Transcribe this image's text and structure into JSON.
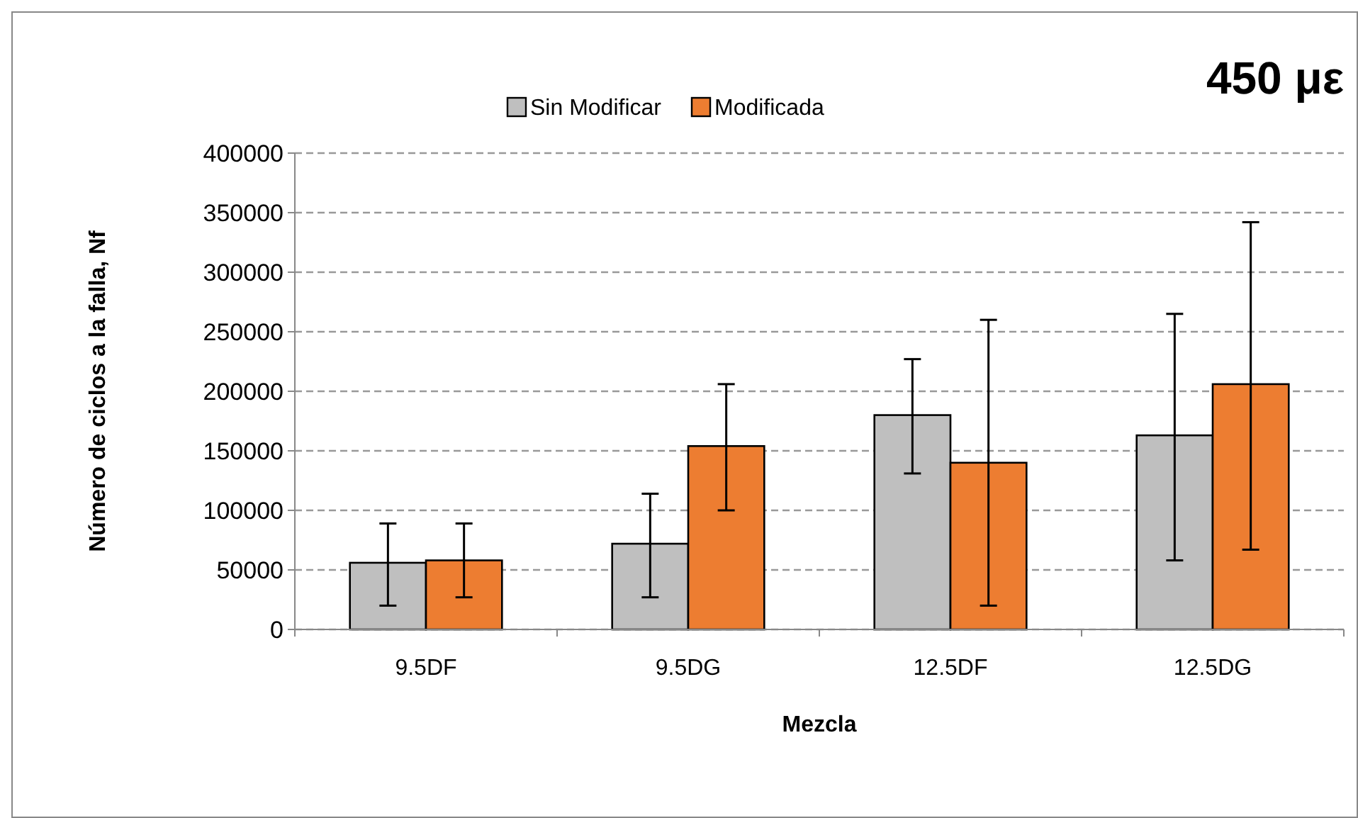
{
  "chart_data": {
    "type": "bar",
    "xlabel": "Mezcla",
    "ylabel": "Número de ciclos a la falla, Nf",
    "annotations": [
      "450 με"
    ],
    "categories": [
      "9.5DF",
      "9.5DG",
      "12.5DF",
      "12.5DG"
    ],
    "series": [
      {
        "name": "Sin Modificar",
        "color": "#bfbfbf",
        "values": [
          56000,
          72000,
          180000,
          163000
        ],
        "errors": [
          [
            20000,
            89000
          ],
          [
            27000,
            114000
          ],
          [
            131000,
            227000
          ],
          [
            58000,
            265000
          ]
        ]
      },
      {
        "name": "Modificada",
        "color": "#ed7d31",
        "values": [
          58000,
          154000,
          140000,
          206000
        ],
        "errors": [
          [
            27000,
            89000
          ],
          [
            100000,
            206000
          ],
          [
            20000,
            260000
          ],
          [
            67000,
            342000
          ]
        ]
      }
    ],
    "ylim": [
      0,
      400000
    ],
    "yticks": [
      0,
      50000,
      100000,
      150000,
      200000,
      250000,
      300000,
      350000,
      400000
    ],
    "grid": "y",
    "legend": "top"
  }
}
